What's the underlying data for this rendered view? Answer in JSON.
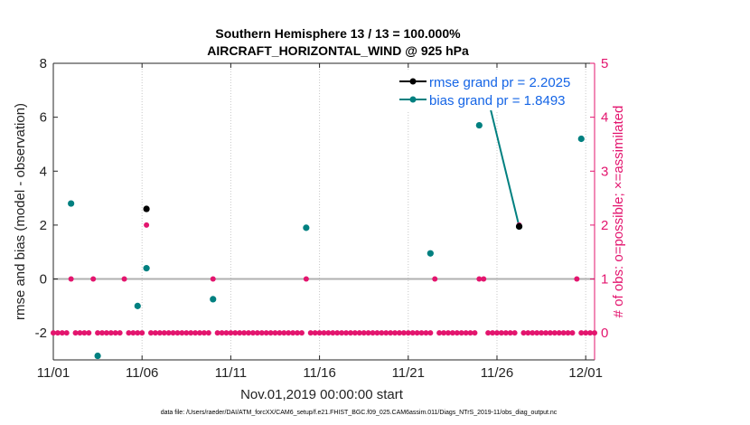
{
  "chart_data": {
    "type": "scatter",
    "title": [
      "Southern Hemisphere 13 / 13 = 100.000%",
      "AIRCRAFT_HORIZONTAL_WIND @ 925 hPa"
    ],
    "xlabel": "Nov.01,2019 00:00:00 start",
    "ylabel_left": "rmse and bias (model - observation)",
    "ylabel_right": "# of obs: o=possible; ×=assimilated",
    "footer": "data file: /Users/raeder/DAI/ATM_forcXX/CAM6_setup/f.e21.FHIST_BGC.f09_025.CAM6assim.011/Diags_NTrS_2019-11/obs_diag_output.nc",
    "xlim": [
      0,
      30.5
    ],
    "ylim_left": [
      -3,
      8
    ],
    "ylim_right": [
      -0.5,
      5
    ],
    "x_ticks": [
      0,
      5,
      10,
      15,
      20,
      25,
      30
    ],
    "x_tick_labels": [
      "11/01",
      "11/06",
      "11/11",
      "11/16",
      "11/21",
      "11/26",
      "12/01"
    ],
    "y_ticks_left": [
      -2,
      0,
      2,
      4,
      6,
      8
    ],
    "y_ticks_right": [
      0,
      1,
      2,
      3,
      4,
      5
    ],
    "zero_line": 0,
    "series": [
      {
        "name": "rmse grand pr = 2.2025",
        "color": "#000000",
        "x": [
          5.25,
          25.25,
          26.25
        ],
        "y": [
          2.6,
          7.25,
          1.95
        ]
      },
      {
        "name": "bias grand pr = 1.8493",
        "color": "#008080",
        "x": [
          1.0,
          2.5,
          4.75,
          5.25,
          9.0,
          14.25,
          21.25,
          24.0,
          24.25,
          26.25,
          29.75
        ],
        "y": [
          2.8,
          -2.85,
          -1.0,
          0.4,
          -0.75,
          1.9,
          0.95,
          5.7,
          7.35,
          1.95,
          5.2
        ]
      }
    ],
    "bias_lines": [
      [
        8,
        9
      ]
    ],
    "obs_counts": {
      "color": "#e3156e",
      "x": [
        0.0,
        0.25,
        0.5,
        0.75,
        1.0,
        1.25,
        1.5,
        1.75,
        2.0,
        2.25,
        2.5,
        2.75,
        3.0,
        3.25,
        3.5,
        3.75,
        4.0,
        4.25,
        4.5,
        4.75,
        5.0,
        5.25,
        5.5,
        5.75,
        6.0,
        6.25,
        6.5,
        6.75,
        7.0,
        7.25,
        7.5,
        7.75,
        8.0,
        8.25,
        8.5,
        8.75,
        9.0,
        9.25,
        9.5,
        9.75,
        10.0,
        10.25,
        10.5,
        10.75,
        11.0,
        11.25,
        11.5,
        11.75,
        12.0,
        12.25,
        12.5,
        12.75,
        13.0,
        13.25,
        13.5,
        13.75,
        14.0,
        14.25,
        14.5,
        14.75,
        15.0,
        15.25,
        15.5,
        15.75,
        16.0,
        16.25,
        16.5,
        16.75,
        17.0,
        17.25,
        17.5,
        17.75,
        18.0,
        18.25,
        18.5,
        18.75,
        19.0,
        19.25,
        19.5,
        19.75,
        20.0,
        20.25,
        20.5,
        20.75,
        21.0,
        21.25,
        21.5,
        21.75,
        22.0,
        22.25,
        22.5,
        22.75,
        23.0,
        23.25,
        23.5,
        23.75,
        24.0,
        24.25,
        24.5,
        24.75,
        25.0,
        25.25,
        25.5,
        25.75,
        26.0,
        26.25,
        26.5,
        26.75,
        27.0,
        27.25,
        27.5,
        27.75,
        28.0,
        28.25,
        28.5,
        28.75,
        29.0,
        29.25,
        29.5,
        29.75,
        30.0,
        30.25,
        30.5
      ],
      "y": [
        0,
        0,
        0,
        0,
        1,
        0,
        0,
        0,
        0,
        1,
        0,
        0,
        0,
        0,
        0,
        0,
        1,
        0,
        0,
        0,
        0,
        2,
        0,
        0,
        0,
        0,
        0,
        0,
        0,
        0,
        0,
        0,
        0,
        0,
        0,
        0,
        1,
        0,
        0,
        0,
        0,
        0,
        0,
        0,
        0,
        0,
        0,
        0,
        0,
        0,
        0,
        0,
        0,
        0,
        0,
        0,
        0,
        1,
        0,
        0,
        0,
        0,
        0,
        0,
        0,
        0,
        0,
        0,
        0,
        0,
        0,
        0,
        0,
        0,
        0,
        0,
        0,
        0,
        0,
        0,
        0,
        0,
        0,
        0,
        0,
        0,
        1,
        0,
        0,
        0,
        0,
        0,
        0,
        0,
        0,
        0,
        1,
        1,
        0,
        0,
        0,
        0,
        0,
        0,
        0,
        2,
        0,
        0,
        0,
        0,
        0,
        0,
        0,
        0,
        0,
        0,
        0,
        0,
        1,
        0,
        0,
        0,
        0
      ]
    },
    "legend_position": "top-right",
    "grid": "vertical-dotted"
  }
}
